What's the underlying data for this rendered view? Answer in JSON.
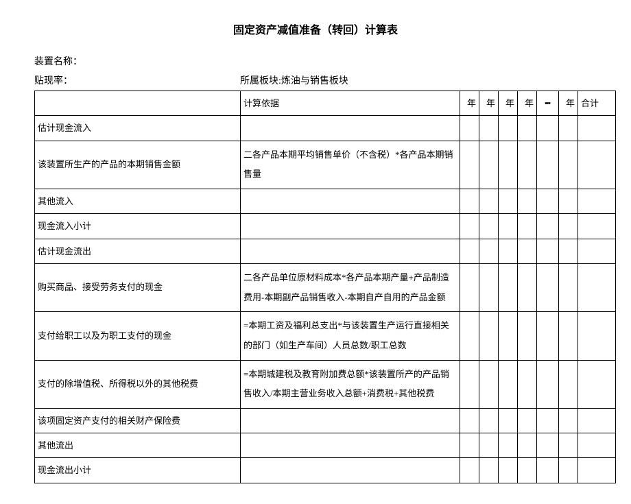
{
  "title": "固定资产减值准备（转回）计算表",
  "meta": {
    "device_name_label": "装置名称：",
    "discount_rate_label": "贴现率：",
    "segment_label": "所属板块:",
    "segment_value": "炼油与销售板块"
  },
  "headers": {
    "basis": "计算依据",
    "year": "年",
    "ellipsis": "┅",
    "total": "合计"
  },
  "rows": [
    {
      "item": "估计现金流入",
      "basis": ""
    },
    {
      "item": "该装置所生产的产品的本期销售金额",
      "basis": "二各产品本期平均销售单价（不含税）*各产品本期销售量",
      "multi": true
    },
    {
      "item": "其他流入",
      "basis": ""
    },
    {
      "item": "现金流入小计",
      "basis": ""
    },
    {
      "item": "估计现金流出",
      "basis": ""
    },
    {
      "item": "购买商品、接受劳务支付的现金",
      "basis": "二各产品单位原材料成本*各产品本期产量+产品制造费用-本期副产品销售收入-本期自产自用的产品金额",
      "multi": true
    },
    {
      "item": "支付给职工以及为职工支付的现金",
      "basis": "=本期工资及福利总支出*与该装置生产运行直接相关的部门（如生产车间）人员总数/职工总数",
      "multi": true
    },
    {
      "item": "支付的除增值税、所得税以外的其他税费",
      "basis": "=本期城建税及教育附加费总额*该装置所产的产品销售收入/本期主营业务收入总额+消费税+其他税费",
      "multi": true
    },
    {
      "item": "该项固定资产支付的相关财产保险费",
      "basis": ""
    },
    {
      "item": "其他流出",
      "basis": ""
    },
    {
      "item": "现金流出小计",
      "basis": ""
    }
  ],
  "styling": {
    "background": "#ffffff",
    "border_color": "#000000",
    "text_color": "#000000",
    "title_fontsize": 16,
    "body_fontsize": 14,
    "cell_fontsize": 13,
    "year_columns": 4
  }
}
